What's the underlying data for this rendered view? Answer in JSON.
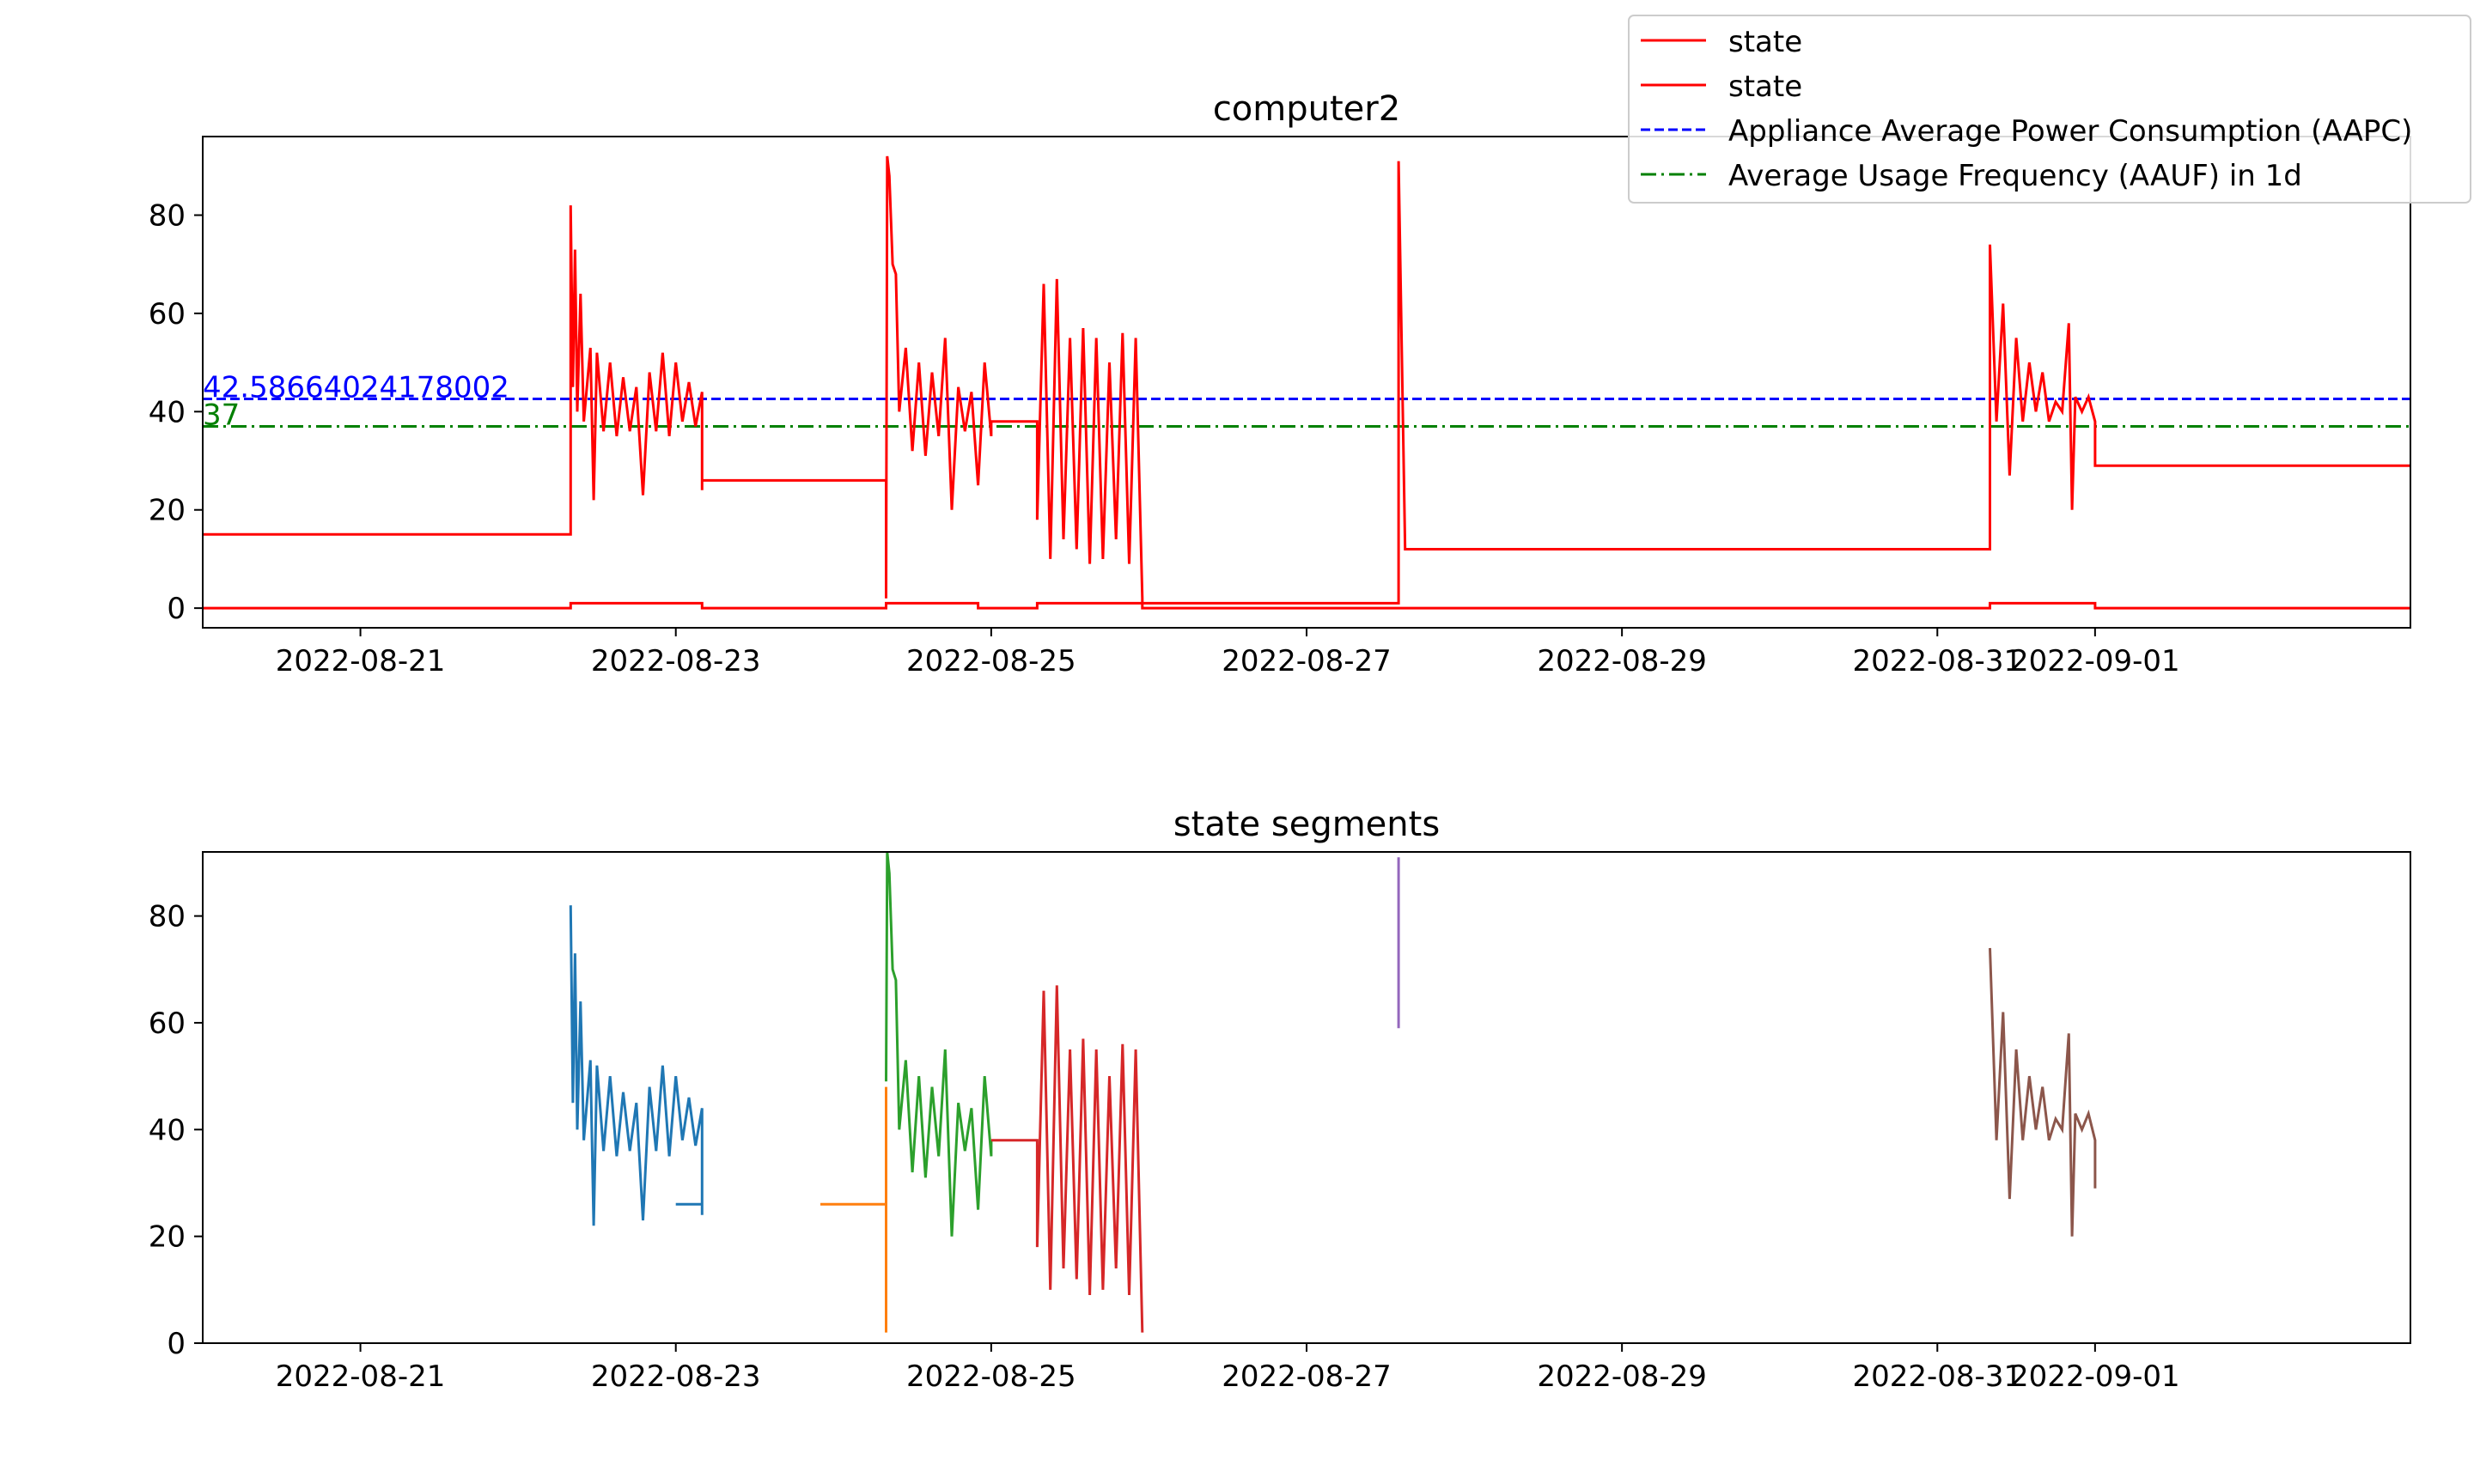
{
  "chart_data": [
    {
      "type": "line",
      "title": "computer2",
      "xlabel": "",
      "ylabel": "",
      "x_type": "date",
      "xlim": [
        "2022-08-20 00:00",
        "2022-09-03 00:00"
      ],
      "ylim": [
        -4,
        96
      ],
      "x_ticks": [
        "2022-08-21",
        "2022-08-23",
        "2022-08-25",
        "2022-08-27",
        "2022-08-29",
        "2022-08-31",
        "2022-09-01"
      ],
      "y_ticks": [
        0,
        20,
        40,
        60,
        80
      ],
      "grid": false,
      "legend_position": "top-right",
      "legend": [
        {
          "label": "state",
          "color": "#ff0000",
          "style": "solid"
        },
        {
          "label": "state",
          "color": "#ff0000",
          "style": "solid"
        },
        {
          "label": "Appliance Average Power Consumption (AAPC)",
          "color": "#0000ff",
          "style": "dashed"
        },
        {
          "label": "Average Usage Frequency (AAUF) in 1d",
          "color": "#008000",
          "style": "dashdot"
        }
      ],
      "annotations": [
        {
          "text": "42.58664024178002",
          "color": "#0000ff",
          "x": "2022-08-20 00:00",
          "y": 42.58664024178002
        },
        {
          "text": "37",
          "color": "#008000",
          "x": "2022-08-20 00:00",
          "y": 37
        }
      ],
      "hlines": [
        {
          "y": 42.58664024178002,
          "color": "#0000ff",
          "style": "dashed"
        },
        {
          "y": 37,
          "color": "#008000",
          "style": "dashdot"
        }
      ],
      "series": [
        {
          "color": "#ff0000",
          "step": true,
          "points": [
            [
              "2022-08-20 00:00",
              15
            ],
            [
              "2022-08-22 08:00",
              15
            ],
            [
              "2022-08-22 08:00",
              82
            ],
            [
              "2022-08-22 08:20",
              45
            ],
            [
              "2022-08-22 08:40",
              73
            ],
            [
              "2022-08-22 09:00",
              40
            ],
            [
              "2022-08-22 09:30",
              64
            ],
            [
              "2022-08-22 10:00",
              38
            ],
            [
              "2022-08-22 11:00",
              53
            ],
            [
              "2022-08-22 11:30",
              22
            ],
            [
              "2022-08-22 12:00",
              52
            ],
            [
              "2022-08-22 13:00",
              36
            ],
            [
              "2022-08-22 14:00",
              50
            ],
            [
              "2022-08-22 15:00",
              35
            ],
            [
              "2022-08-22 16:00",
              47
            ],
            [
              "2022-08-22 17:00",
              36
            ],
            [
              "2022-08-22 18:00",
              45
            ],
            [
              "2022-08-22 19:00",
              23
            ],
            [
              "2022-08-22 20:00",
              48
            ],
            [
              "2022-08-22 21:00",
              36
            ],
            [
              "2022-08-22 22:00",
              52
            ],
            [
              "2022-08-22 23:00",
              35
            ],
            [
              "2022-08-23 00:00",
              50
            ],
            [
              "2022-08-23 01:00",
              38
            ],
            [
              "2022-08-23 02:00",
              46
            ],
            [
              "2022-08-23 03:00",
              37
            ],
            [
              "2022-08-23 04:00",
              44
            ],
            [
              "2022-08-23 04:00",
              24
            ],
            [
              "2022-08-23 04:00",
              26
            ],
            [
              "2022-08-24 08:00",
              26
            ],
            [
              "2022-08-24 08:00",
              2
            ],
            [
              "2022-08-24 08:10",
              92
            ],
            [
              "2022-08-24 08:30",
              88
            ],
            [
              "2022-08-24 09:00",
              70
            ],
            [
              "2022-08-24 09:30",
              68
            ],
            [
              "2022-08-24 10:00",
              40
            ],
            [
              "2022-08-24 11:00",
              53
            ],
            [
              "2022-08-24 12:00",
              32
            ],
            [
              "2022-08-24 13:00",
              50
            ],
            [
              "2022-08-24 14:00",
              31
            ],
            [
              "2022-08-24 15:00",
              48
            ],
            [
              "2022-08-24 16:00",
              35
            ],
            [
              "2022-08-24 17:00",
              55
            ],
            [
              "2022-08-24 18:00",
              20
            ],
            [
              "2022-08-24 19:00",
              45
            ],
            [
              "2022-08-24 20:00",
              36
            ],
            [
              "2022-08-24 21:00",
              44
            ],
            [
              "2022-08-24 22:00",
              25
            ],
            [
              "2022-08-24 23:00",
              50
            ],
            [
              "2022-08-25 00:00",
              35
            ],
            [
              "2022-08-25 00:00",
              38
            ],
            [
              "2022-08-25 07:00",
              38
            ],
            [
              "2022-08-25 07:00",
              18
            ],
            [
              "2022-08-25 08:00",
              66
            ],
            [
              "2022-08-25 09:00",
              10
            ],
            [
              "2022-08-25 10:00",
              67
            ],
            [
              "2022-08-25 11:00",
              14
            ],
            [
              "2022-08-25 12:00",
              55
            ],
            [
              "2022-08-25 13:00",
              12
            ],
            [
              "2022-08-25 14:00",
              57
            ],
            [
              "2022-08-25 15:00",
              9
            ],
            [
              "2022-08-25 16:00",
              55
            ],
            [
              "2022-08-25 17:00",
              10
            ],
            [
              "2022-08-25 18:00",
              50
            ],
            [
              "2022-08-25 19:00",
              14
            ],
            [
              "2022-08-25 20:00",
              56
            ],
            [
              "2022-08-25 21:00",
              9
            ],
            [
              "2022-08-25 22:00",
              55
            ],
            [
              "2022-08-25 23:00",
              2
            ],
            [
              "2022-08-25 23:00",
              1
            ],
            [
              "2022-08-27 14:00",
              1
            ],
            [
              "2022-08-27 14:00",
              91
            ],
            [
              "2022-08-27 15:00",
              12
            ],
            [
              "2022-08-31 08:00",
              12
            ],
            [
              "2022-08-31 08:00",
              74
            ],
            [
              "2022-08-31 09:00",
              38
            ],
            [
              "2022-08-31 10:00",
              62
            ],
            [
              "2022-08-31 11:00",
              27
            ],
            [
              "2022-08-31 12:00",
              55
            ],
            [
              "2022-08-31 13:00",
              38
            ],
            [
              "2022-08-31 14:00",
              50
            ],
            [
              "2022-08-31 15:00",
              40
            ],
            [
              "2022-08-31 16:00",
              48
            ],
            [
              "2022-08-31 17:00",
              38
            ],
            [
              "2022-08-31 18:00",
              42
            ],
            [
              "2022-08-31 19:00",
              40
            ],
            [
              "2022-08-31 20:00",
              58
            ],
            [
              "2022-08-31 20:30",
              20
            ],
            [
              "2022-08-31 21:00",
              43
            ],
            [
              "2022-08-31 22:00",
              40
            ],
            [
              "2022-08-31 23:00",
              43
            ],
            [
              "2022-09-01 00:00",
              38
            ],
            [
              "2022-09-01 00:00",
              29
            ],
            [
              "2022-09-03 00:00",
              29
            ]
          ]
        },
        {
          "color": "#ff0000",
          "step": true,
          "points": [
            [
              "2022-08-20 00:00",
              0
            ],
            [
              "2022-08-22 08:00",
              0
            ],
            [
              "2022-08-22 08:00",
              1
            ],
            [
              "2022-08-23 04:00",
              1
            ],
            [
              "2022-08-23 04:00",
              0
            ],
            [
              "2022-08-24 08:00",
              0
            ],
            [
              "2022-08-24 08:00",
              1
            ],
            [
              "2022-08-24 22:00",
              1
            ],
            [
              "2022-08-24 22:00",
              0
            ],
            [
              "2022-08-25 07:00",
              0
            ],
            [
              "2022-08-25 07:00",
              1
            ],
            [
              "2022-08-25 23:00",
              1
            ],
            [
              "2022-08-25 23:00",
              0
            ],
            [
              "2022-08-31 08:00",
              0
            ],
            [
              "2022-08-31 08:00",
              1
            ],
            [
              "2022-09-01 00:00",
              1
            ],
            [
              "2022-09-01 00:00",
              0
            ],
            [
              "2022-09-03 00:00",
              0
            ]
          ]
        }
      ]
    },
    {
      "type": "line",
      "title": "state segments",
      "xlabel": "",
      "ylabel": "",
      "x_type": "date",
      "xlim": [
        "2022-08-20 00:00",
        "2022-09-03 00:00"
      ],
      "ylim": [
        0,
        92
      ],
      "x_ticks": [
        "2022-08-21",
        "2022-08-23",
        "2022-08-25",
        "2022-08-27",
        "2022-08-29",
        "2022-08-31",
        "2022-09-01"
      ],
      "y_ticks": [
        0,
        20,
        40,
        60,
        80
      ],
      "grid": false,
      "series": [
        {
          "color": "#1f77b4",
          "points": [
            [
              "2022-08-22 08:00",
              82
            ],
            [
              "2022-08-22 08:20",
              45
            ],
            [
              "2022-08-22 08:40",
              73
            ],
            [
              "2022-08-22 09:00",
              40
            ],
            [
              "2022-08-22 09:30",
              64
            ],
            [
              "2022-08-22 10:00",
              38
            ],
            [
              "2022-08-22 11:00",
              53
            ],
            [
              "2022-08-22 11:30",
              22
            ],
            [
              "2022-08-22 12:00",
              52
            ],
            [
              "2022-08-22 13:00",
              36
            ],
            [
              "2022-08-22 14:00",
              50
            ],
            [
              "2022-08-22 15:00",
              35
            ],
            [
              "2022-08-22 16:00",
              47
            ],
            [
              "2022-08-22 17:00",
              36
            ],
            [
              "2022-08-22 18:00",
              45
            ],
            [
              "2022-08-22 19:00",
              23
            ],
            [
              "2022-08-22 20:00",
              48
            ],
            [
              "2022-08-22 21:00",
              36
            ],
            [
              "2022-08-22 22:00",
              52
            ],
            [
              "2022-08-22 23:00",
              35
            ],
            [
              "2022-08-23 00:00",
              50
            ],
            [
              "2022-08-23 01:00",
              38
            ],
            [
              "2022-08-23 02:00",
              46
            ],
            [
              "2022-08-23 03:00",
              37
            ],
            [
              "2022-08-23 04:00",
              44
            ],
            [
              "2022-08-23 04:00",
              24
            ],
            [
              "2022-08-23 04:00",
              26
            ],
            [
              "2022-08-23 00:00",
              26
            ],
            [
              "2022-08-23 00:00",
              26
            ]
          ]
        },
        {
          "color": "#ff7f0e",
          "points": [
            [
              "2022-08-23 22:00",
              26
            ],
            [
              "2022-08-24 08:00",
              26
            ],
            [
              "2022-08-24 08:00",
              2
            ],
            [
              "2022-08-24 08:00",
              48
            ]
          ]
        },
        {
          "color": "#2ca02c",
          "points": [
            [
              "2022-08-24 08:00",
              49
            ],
            [
              "2022-08-24 08:10",
              92
            ],
            [
              "2022-08-24 08:30",
              88
            ],
            [
              "2022-08-24 09:00",
              70
            ],
            [
              "2022-08-24 09:30",
              68
            ],
            [
              "2022-08-24 10:00",
              40
            ],
            [
              "2022-08-24 11:00",
              53
            ],
            [
              "2022-08-24 12:00",
              32
            ],
            [
              "2022-08-24 13:00",
              50
            ],
            [
              "2022-08-24 14:00",
              31
            ],
            [
              "2022-08-24 15:00",
              48
            ],
            [
              "2022-08-24 16:00",
              35
            ],
            [
              "2022-08-24 17:00",
              55
            ],
            [
              "2022-08-24 18:00",
              20
            ],
            [
              "2022-08-24 19:00",
              45
            ],
            [
              "2022-08-24 20:00",
              36
            ],
            [
              "2022-08-24 21:00",
              44
            ],
            [
              "2022-08-24 22:00",
              25
            ],
            [
              "2022-08-24 23:00",
              50
            ],
            [
              "2022-08-25 00:00",
              35
            ],
            [
              "2022-08-25 00:00",
              38
            ]
          ]
        },
        {
          "color": "#d62728",
          "points": [
            [
              "2022-08-25 00:00",
              38
            ],
            [
              "2022-08-25 07:00",
              38
            ],
            [
              "2022-08-25 07:00",
              18
            ],
            [
              "2022-08-25 08:00",
              66
            ],
            [
              "2022-08-25 09:00",
              10
            ],
            [
              "2022-08-25 10:00",
              67
            ],
            [
              "2022-08-25 11:00",
              14
            ],
            [
              "2022-08-25 12:00",
              55
            ],
            [
              "2022-08-25 13:00",
              12
            ],
            [
              "2022-08-25 14:00",
              57
            ],
            [
              "2022-08-25 15:00",
              9
            ],
            [
              "2022-08-25 16:00",
              55
            ],
            [
              "2022-08-25 17:00",
              10
            ],
            [
              "2022-08-25 18:00",
              50
            ],
            [
              "2022-08-25 19:00",
              14
            ],
            [
              "2022-08-25 20:00",
              56
            ],
            [
              "2022-08-25 21:00",
              9
            ],
            [
              "2022-08-25 22:00",
              55
            ],
            [
              "2022-08-25 23:00",
              2
            ]
          ]
        },
        {
          "color": "#9467bd",
          "points": [
            [
              "2022-08-27 14:00",
              91
            ],
            [
              "2022-08-27 14:00",
              59
            ],
            [
              "2022-08-27 14:00",
              84
            ],
            [
              "2022-08-27 14:00",
              70
            ]
          ]
        },
        {
          "color": "#8c564b",
          "points": [
            [
              "2022-08-31 08:00",
              74
            ],
            [
              "2022-08-31 09:00",
              38
            ],
            [
              "2022-08-31 10:00",
              62
            ],
            [
              "2022-08-31 11:00",
              27
            ],
            [
              "2022-08-31 12:00",
              55
            ],
            [
              "2022-08-31 13:00",
              38
            ],
            [
              "2022-08-31 14:00",
              50
            ],
            [
              "2022-08-31 15:00",
              40
            ],
            [
              "2022-08-31 16:00",
              48
            ],
            [
              "2022-08-31 17:00",
              38
            ],
            [
              "2022-08-31 18:00",
              42
            ],
            [
              "2022-08-31 19:00",
              40
            ],
            [
              "2022-08-31 20:00",
              58
            ],
            [
              "2022-08-31 20:30",
              20
            ],
            [
              "2022-08-31 21:00",
              43
            ],
            [
              "2022-08-31 22:00",
              40
            ],
            [
              "2022-08-31 23:00",
              43
            ],
            [
              "2022-09-01 00:00",
              38
            ],
            [
              "2022-09-01 00:00",
              29
            ],
            [
              "2022-09-01 00:00",
              29
            ]
          ]
        }
      ]
    }
  ]
}
